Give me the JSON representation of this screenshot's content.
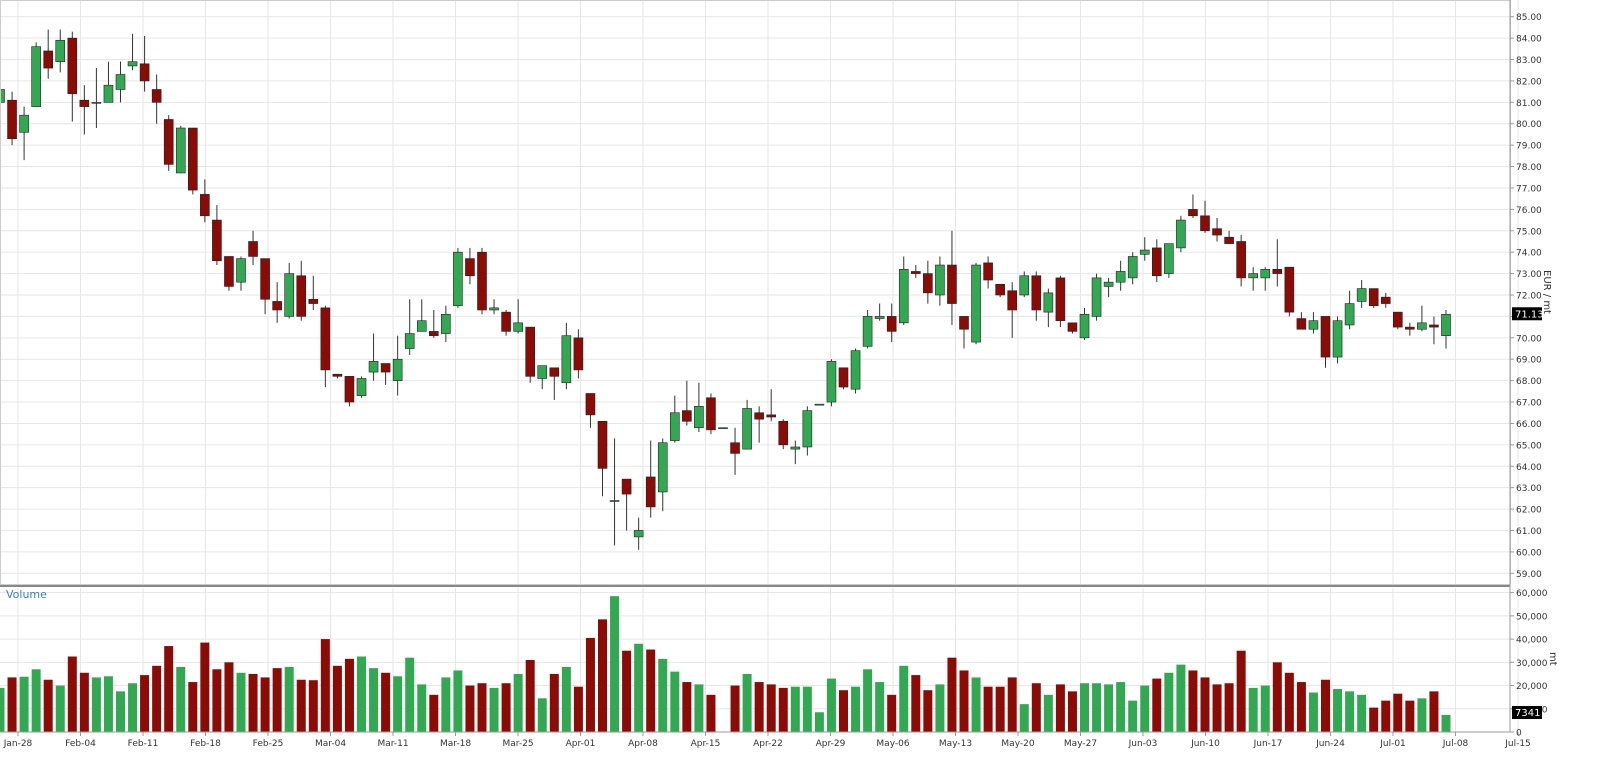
{
  "chart_data": [
    {
      "type": "candlestick",
      "ylabel": "EUR / mt",
      "ylim": [
        58.5,
        85.5
      ],
      "y_ticks": [
        "59.00",
        "60.00",
        "61.00",
        "62.00",
        "63.00",
        "64.00",
        "65.00",
        "66.00",
        "67.00",
        "68.00",
        "69.00",
        "70.00",
        "71.00",
        "72.00",
        "73.00",
        "74.00",
        "75.00",
        "76.00",
        "77.00",
        "78.00",
        "79.00",
        "80.00",
        "81.00",
        "82.00",
        "83.00",
        "84.00",
        "85.00"
      ],
      "last_price": "71.13",
      "x_labels": [
        "Jan-28",
        "Feb-04",
        "Feb-11",
        "Feb-18",
        "Feb-25",
        "Mar-04",
        "Mar-11",
        "Mar-18",
        "Mar-25",
        "Apr-01",
        "Apr-08",
        "Apr-15",
        "Apr-22",
        "Apr-29",
        "May-06",
        "May-13",
        "May-20",
        "May-27",
        "Jun-03",
        "Jun-10",
        "Jun-17",
        "Jun-24",
        "Jul-01",
        "Jul-08",
        "Jul-15"
      ],
      "candles": [
        {
          "o": 81.0,
          "h": 81.7,
          "l": 80.2,
          "c": 81.6
        },
        {
          "o": 81.1,
          "h": 81.5,
          "l": 79.0,
          "c": 79.3
        },
        {
          "o": 79.6,
          "h": 80.8,
          "l": 78.3,
          "c": 80.4
        },
        {
          "o": 80.8,
          "h": 83.8,
          "l": 80.8,
          "c": 83.6
        },
        {
          "o": 83.4,
          "h": 84.4,
          "l": 82.1,
          "c": 82.6
        },
        {
          "o": 82.9,
          "h": 84.4,
          "l": 82.4,
          "c": 83.9
        },
        {
          "o": 84.0,
          "h": 84.3,
          "l": 80.1,
          "c": 81.4
        },
        {
          "o": 81.1,
          "h": 81.8,
          "l": 79.5,
          "c": 80.8
        },
        {
          "o": 81.0,
          "h": 82.6,
          "l": 79.8,
          "c": 81.0
        },
        {
          "o": 81.0,
          "h": 82.9,
          "l": 81.0,
          "c": 81.8
        },
        {
          "o": 81.6,
          "h": 82.9,
          "l": 81.0,
          "c": 82.3
        },
        {
          "o": 82.7,
          "h": 84.2,
          "l": 82.5,
          "c": 82.9
        },
        {
          "o": 82.8,
          "h": 84.1,
          "l": 81.5,
          "c": 82.0
        },
        {
          "o": 81.6,
          "h": 82.3,
          "l": 80.0,
          "c": 81.0
        },
        {
          "o": 80.2,
          "h": 80.4,
          "l": 77.8,
          "c": 78.1
        },
        {
          "o": 77.7,
          "h": 79.9,
          "l": 77.7,
          "c": 79.8
        },
        {
          "o": 79.8,
          "h": 79.8,
          "l": 76.7,
          "c": 76.9
        },
        {
          "o": 76.7,
          "h": 77.4,
          "l": 75.4,
          "c": 75.7
        },
        {
          "o": 75.5,
          "h": 76.2,
          "l": 73.4,
          "c": 73.6
        },
        {
          "o": 73.8,
          "h": 73.8,
          "l": 72.2,
          "c": 72.4
        },
        {
          "o": 72.6,
          "h": 73.8,
          "l": 72.2,
          "c": 73.7
        },
        {
          "o": 74.5,
          "h": 75.0,
          "l": 73.4,
          "c": 73.8
        },
        {
          "o": 73.7,
          "h": 73.7,
          "l": 71.1,
          "c": 71.8
        },
        {
          "o": 71.7,
          "h": 72.6,
          "l": 70.7,
          "c": 71.3
        },
        {
          "o": 71.0,
          "h": 73.5,
          "l": 70.9,
          "c": 73.0
        },
        {
          "o": 72.9,
          "h": 73.6,
          "l": 70.8,
          "c": 71.0
        },
        {
          "o": 71.8,
          "h": 72.9,
          "l": 71.3,
          "c": 71.6
        },
        {
          "o": 71.4,
          "h": 71.5,
          "l": 67.7,
          "c": 68.5
        },
        {
          "o": 68.3,
          "h": 68.3,
          "l": 68.1,
          "c": 68.2
        },
        {
          "o": 68.2,
          "h": 68.2,
          "l": 66.8,
          "c": 67.0
        },
        {
          "o": 67.3,
          "h": 68.2,
          "l": 67.2,
          "c": 68.1
        },
        {
          "o": 68.4,
          "h": 70.2,
          "l": 68.0,
          "c": 68.9
        },
        {
          "o": 68.8,
          "h": 68.8,
          "l": 67.8,
          "c": 68.4
        },
        {
          "o": 68.0,
          "h": 70.1,
          "l": 67.3,
          "c": 69.0
        },
        {
          "o": 69.5,
          "h": 71.8,
          "l": 69.2,
          "c": 70.2
        },
        {
          "o": 70.3,
          "h": 71.8,
          "l": 70.3,
          "c": 70.8
        },
        {
          "o": 70.3,
          "h": 71.3,
          "l": 70.0,
          "c": 70.1
        },
        {
          "o": 70.2,
          "h": 71.5,
          "l": 69.8,
          "c": 71.1
        },
        {
          "o": 71.5,
          "h": 74.2,
          "l": 71.4,
          "c": 74.0
        },
        {
          "o": 73.7,
          "h": 74.2,
          "l": 72.5,
          "c": 72.9
        },
        {
          "o": 74.0,
          "h": 74.2,
          "l": 71.1,
          "c": 71.3
        },
        {
          "o": 71.3,
          "h": 71.8,
          "l": 71.1,
          "c": 71.4
        },
        {
          "o": 71.2,
          "h": 71.3,
          "l": 70.1,
          "c": 70.3
        },
        {
          "o": 70.3,
          "h": 71.8,
          "l": 70.2,
          "c": 70.7
        },
        {
          "o": 70.5,
          "h": 70.5,
          "l": 67.9,
          "c": 68.2
        },
        {
          "o": 68.1,
          "h": 68.6,
          "l": 67.6,
          "c": 68.7
        },
        {
          "o": 68.6,
          "h": 68.6,
          "l": 67.1,
          "c": 68.2
        },
        {
          "o": 67.9,
          "h": 70.7,
          "l": 67.6,
          "c": 70.1
        },
        {
          "o": 70.0,
          "h": 70.4,
          "l": 68.1,
          "c": 68.5
        },
        {
          "o": 67.4,
          "h": 67.4,
          "l": 65.8,
          "c": 66.4
        },
        {
          "o": 66.1,
          "h": 66.1,
          "l": 62.6,
          "c": 63.9
        },
        {
          "o": 62.4,
          "h": 65.3,
          "l": 60.3,
          "c": 62.4
        },
        {
          "o": 63.4,
          "h": 63.4,
          "l": 61.0,
          "c": 62.7
        },
        {
          "o": 60.7,
          "h": 61.6,
          "l": 60.1,
          "c": 61.0
        },
        {
          "o": 63.5,
          "h": 65.2,
          "l": 61.6,
          "c": 62.1
        },
        {
          "o": 62.8,
          "h": 65.3,
          "l": 61.9,
          "c": 65.1
        },
        {
          "o": 65.2,
          "h": 67.3,
          "l": 65.1,
          "c": 66.5
        },
        {
          "o": 66.6,
          "h": 68.0,
          "l": 65.9,
          "c": 66.1
        },
        {
          "o": 65.8,
          "h": 67.9,
          "l": 65.6,
          "c": 66.8
        },
        {
          "o": 67.2,
          "h": 67.4,
          "l": 65.5,
          "c": 65.7
        },
        {
          "o": 65.8,
          "h": 65.8,
          "l": 65.8,
          "c": 65.8
        },
        {
          "o": 65.1,
          "h": 65.8,
          "l": 63.6,
          "c": 64.6
        },
        {
          "o": 64.8,
          "h": 67.1,
          "l": 64.8,
          "c": 66.7
        },
        {
          "o": 66.5,
          "h": 66.8,
          "l": 65.1,
          "c": 66.2
        },
        {
          "o": 66.4,
          "h": 67.6,
          "l": 66.1,
          "c": 66.3
        },
        {
          "o": 66.1,
          "h": 66.2,
          "l": 64.8,
          "c": 65.0
        },
        {
          "o": 64.8,
          "h": 65.2,
          "l": 64.1,
          "c": 64.9
        },
        {
          "o": 64.9,
          "h": 66.8,
          "l": 64.5,
          "c": 66.6
        },
        {
          "o": 66.9,
          "h": 66.9,
          "l": 66.9,
          "c": 66.9
        },
        {
          "o": 67.0,
          "h": 69.0,
          "l": 66.8,
          "c": 68.9
        },
        {
          "o": 68.6,
          "h": 68.6,
          "l": 67.6,
          "c": 67.7
        },
        {
          "o": 67.6,
          "h": 69.5,
          "l": 67.4,
          "c": 69.4
        },
        {
          "o": 69.6,
          "h": 71.3,
          "l": 69.5,
          "c": 71.0
        },
        {
          "o": 70.9,
          "h": 71.6,
          "l": 70.8,
          "c": 71.0
        },
        {
          "o": 71.0,
          "h": 71.6,
          "l": 69.8,
          "c": 70.3
        },
        {
          "o": 70.7,
          "h": 73.8,
          "l": 70.6,
          "c": 73.2
        },
        {
          "o": 73.1,
          "h": 73.4,
          "l": 72.8,
          "c": 73.0
        },
        {
          "o": 73.0,
          "h": 73.6,
          "l": 71.6,
          "c": 72.1
        },
        {
          "o": 72.0,
          "h": 73.8,
          "l": 71.5,
          "c": 73.4
        },
        {
          "o": 73.4,
          "h": 75.0,
          "l": 70.6,
          "c": 71.6
        },
        {
          "o": 71.0,
          "h": 71.0,
          "l": 69.5,
          "c": 70.4
        },
        {
          "o": 69.8,
          "h": 73.5,
          "l": 69.7,
          "c": 73.4
        },
        {
          "o": 73.5,
          "h": 73.8,
          "l": 72.3,
          "c": 72.7
        },
        {
          "o": 72.5,
          "h": 72.5,
          "l": 71.9,
          "c": 72.0
        },
        {
          "o": 72.2,
          "h": 72.6,
          "l": 70.0,
          "c": 71.3
        },
        {
          "o": 72.0,
          "h": 73.1,
          "l": 71.9,
          "c": 72.9
        },
        {
          "o": 72.9,
          "h": 73.1,
          "l": 70.8,
          "c": 71.3
        },
        {
          "o": 71.2,
          "h": 72.3,
          "l": 70.5,
          "c": 72.1
        },
        {
          "o": 72.8,
          "h": 72.9,
          "l": 70.5,
          "c": 70.8
        },
        {
          "o": 70.7,
          "h": 70.7,
          "l": 70.2,
          "c": 70.3
        },
        {
          "o": 70.0,
          "h": 71.4,
          "l": 69.9,
          "c": 71.1
        },
        {
          "o": 71.0,
          "h": 73.0,
          "l": 70.8,
          "c": 72.8
        },
        {
          "o": 72.4,
          "h": 72.8,
          "l": 71.9,
          "c": 72.6
        },
        {
          "o": 72.6,
          "h": 73.6,
          "l": 72.2,
          "c": 73.1
        },
        {
          "o": 72.8,
          "h": 74.0,
          "l": 72.5,
          "c": 73.8
        },
        {
          "o": 73.9,
          "h": 74.7,
          "l": 73.6,
          "c": 74.1
        },
        {
          "o": 74.2,
          "h": 74.6,
          "l": 72.6,
          "c": 72.9
        },
        {
          "o": 73.0,
          "h": 74.4,
          "l": 72.8,
          "c": 74.4
        },
        {
          "o": 74.2,
          "h": 75.7,
          "l": 74.0,
          "c": 75.5
        },
        {
          "o": 76.0,
          "h": 76.7,
          "l": 75.6,
          "c": 75.7
        },
        {
          "o": 75.7,
          "h": 76.4,
          "l": 74.9,
          "c": 75.0
        },
        {
          "o": 75.1,
          "h": 75.6,
          "l": 74.5,
          "c": 74.8
        },
        {
          "o": 74.7,
          "h": 75.0,
          "l": 74.4,
          "c": 74.4
        },
        {
          "o": 74.5,
          "h": 74.8,
          "l": 72.4,
          "c": 72.8
        },
        {
          "o": 72.8,
          "h": 73.3,
          "l": 72.2,
          "c": 73.0
        },
        {
          "o": 72.8,
          "h": 73.3,
          "l": 72.2,
          "c": 73.2
        },
        {
          "o": 73.2,
          "h": 74.6,
          "l": 72.4,
          "c": 73.0
        },
        {
          "o": 73.3,
          "h": 73.3,
          "l": 71.0,
          "c": 71.2
        },
        {
          "o": 70.9,
          "h": 71.2,
          "l": 70.4,
          "c": 70.4
        },
        {
          "o": 70.4,
          "h": 71.2,
          "l": 70.2,
          "c": 70.8
        },
        {
          "o": 71.0,
          "h": 71.0,
          "l": 68.6,
          "c": 69.1
        },
        {
          "o": 69.1,
          "h": 71.0,
          "l": 68.8,
          "c": 70.8
        },
        {
          "o": 70.6,
          "h": 72.2,
          "l": 70.4,
          "c": 71.6
        },
        {
          "o": 71.7,
          "h": 72.7,
          "l": 71.4,
          "c": 72.3
        },
        {
          "o": 72.3,
          "h": 72.3,
          "l": 71.4,
          "c": 71.5
        },
        {
          "o": 71.9,
          "h": 72.1,
          "l": 71.4,
          "c": 71.6
        },
        {
          "o": 71.2,
          "h": 71.2,
          "l": 70.4,
          "c": 70.5
        },
        {
          "o": 70.5,
          "h": 70.7,
          "l": 70.1,
          "c": 70.4
        },
        {
          "o": 70.4,
          "h": 71.5,
          "l": 70.3,
          "c": 70.7
        },
        {
          "o": 70.6,
          "h": 71.0,
          "l": 69.7,
          "c": 70.5
        },
        {
          "o": 70.1,
          "h": 71.3,
          "l": 69.5,
          "c": 71.1
        }
      ],
      "grid": true
    },
    {
      "type": "bar",
      "title": "Volume",
      "ylabel": "mt",
      "ylim": [
        0,
        62000
      ],
      "y_ticks": [
        "60,000",
        "50,000",
        "40,000",
        "30,000",
        "20,000",
        "10,000",
        "0"
      ],
      "last_value": "7341",
      "up_color": "#33a853",
      "down_color": "#8b0b07",
      "values": [
        19000,
        23500,
        23800,
        27000,
        22500,
        20000,
        32500,
        25500,
        23500,
        24000,
        17500,
        21000,
        24500,
        28500,
        37000,
        28000,
        21500,
        38500,
        27000,
        30000,
        25500,
        25000,
        23500,
        27500,
        28000,
        22500,
        22300,
        40000,
        28500,
        31500,
        32500,
        27500,
        25500,
        24000,
        32000,
        20500,
        16000,
        23500,
        26500,
        20000,
        21000,
        19000,
        21000,
        25000,
        31000,
        14500,
        25000,
        28000,
        19500,
        40500,
        48500,
        58500,
        35000,
        38000,
        35500,
        31500,
        26000,
        21500,
        20500,
        16000,
        0,
        20000,
        25000,
        21500,
        20500,
        19000,
        19500,
        19500,
        8500,
        23000,
        18000,
        19500,
        27000,
        21500,
        16000,
        28500,
        24500,
        18000,
        20500,
        32000,
        26500,
        23500,
        19500,
        19500,
        23500,
        12000,
        21000,
        16000,
        20500,
        17500,
        21000,
        21000,
        20500,
        21500,
        13500,
        20000,
        23000,
        25500,
        29000,
        26500,
        23500,
        20500,
        21000,
        35000,
        19000,
        20000,
        30000,
        25500,
        21500,
        17000,
        22500,
        18500,
        17500,
        16000,
        10500,
        13500,
        16500,
        13500,
        14500,
        17500,
        7341
      ],
      "grid": true
    }
  ],
  "colors": {
    "up": "#33a853",
    "down": "#8b0b07",
    "grid": "#e6e6e6",
    "axis_text": "#333333",
    "volume_label": "#3a7fc1",
    "price_tag_bg": "#000000"
  }
}
